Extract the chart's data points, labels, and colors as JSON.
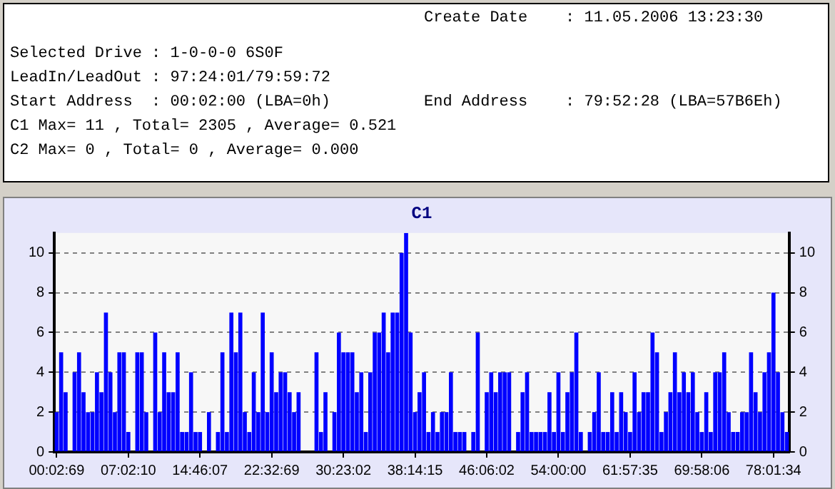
{
  "chart_data": {
    "type": "bar",
    "title": "C1",
    "annotations": [
      "Create Date    : 11.05.2006 13:23:30",
      "Selected Drive : 1-0-0-0 6S0F",
      "LeadIn/LeadOut : 97:24:01/79:59:72",
      "Start Address  : 00:02:00 (LBA=0h)",
      "End Address    : 79:52:28 (LBA=57B6Eh)",
      "C1 Max= 11 , Total= 2305 , Average= 0.521",
      "C2 Max= 0 , Total= 0 , Average= 0.000"
    ],
    "categories": [
      "00:02:69",
      null,
      null,
      null,
      null,
      null,
      null,
      null,
      null,
      null,
      null,
      null,
      null,
      null,
      null,
      null,
      "07:02:10",
      null,
      null,
      null,
      null,
      null,
      null,
      null,
      null,
      null,
      null,
      null,
      null,
      null,
      null,
      null,
      "14:46:07",
      null,
      null,
      null,
      null,
      null,
      null,
      null,
      null,
      null,
      null,
      null,
      null,
      null,
      null,
      null,
      "22:32:69",
      null,
      null,
      null,
      null,
      null,
      null,
      null,
      null,
      null,
      null,
      null,
      null,
      null,
      null,
      null,
      "30:23:02",
      null,
      null,
      null,
      null,
      null,
      null,
      null,
      null,
      null,
      null,
      null,
      null,
      null,
      null,
      null,
      "38:14:15",
      null,
      null,
      null,
      null,
      null,
      null,
      null,
      null,
      null,
      null,
      null,
      null,
      null,
      null,
      null,
      "46:06:02",
      null,
      null,
      null,
      null,
      null,
      null,
      null,
      null,
      null,
      null,
      null,
      null,
      null,
      null,
      null,
      "54:00:00",
      null,
      null,
      null,
      null,
      null,
      null,
      null,
      null,
      null,
      null,
      null,
      null,
      null,
      null,
      null,
      "61:57:35",
      null,
      null,
      null,
      null,
      null,
      null,
      null,
      null,
      null,
      null,
      null,
      null,
      null,
      null,
      null,
      "69:58:06",
      null,
      null,
      null,
      null,
      null,
      null,
      null,
      null,
      null,
      null,
      null,
      null,
      null,
      null,
      null,
      "78:01:34",
      null,
      null,
      null
    ],
    "series": [
      {
        "color": "#0000ff",
        "values": [
          2,
          5,
          3,
          0,
          4,
          5,
          3,
          2,
          2,
          4,
          3,
          7,
          4,
          2,
          5,
          5,
          1,
          0,
          5,
          5,
          2,
          0,
          6,
          2,
          5,
          3,
          3,
          5,
          1,
          1,
          4,
          1,
          1,
          0,
          2,
          0,
          1,
          5,
          1,
          7,
          5,
          7,
          2,
          1,
          4,
          2,
          7,
          2,
          5,
          3,
          4,
          4,
          3,
          2,
          3,
          0,
          0,
          0,
          5,
          1,
          3,
          0,
          2,
          6,
          5,
          5,
          5,
          3,
          4,
          1,
          4,
          6,
          6,
          7,
          5,
          7,
          7,
          10,
          11,
          6,
          2,
          3,
          4,
          1,
          2,
          1,
          2,
          2,
          4,
          1,
          1,
          1,
          0,
          1,
          6,
          0,
          3,
          4,
          3,
          4,
          4,
          4,
          0,
          1,
          3,
          4,
          1,
          1,
          1,
          1,
          3,
          1,
          4,
          1,
          3,
          4,
          6,
          1,
          0,
          1,
          2,
          4,
          1,
          1,
          3,
          1,
          3,
          2,
          1,
          4,
          2,
          3,
          3,
          6,
          5,
          1,
          2,
          3,
          5,
          3,
          4,
          3,
          4,
          2,
          1,
          3,
          1,
          4,
          4,
          5,
          2,
          1,
          1,
          2,
          2,
          5,
          3,
          2,
          4,
          5,
          8,
          4,
          2,
          1
        ]
      }
    ],
    "ylim": [
      0,
      11
    ],
    "yticks": [
      0,
      2,
      4,
      6,
      8,
      10
    ],
    "y2lim": [
      0,
      11
    ],
    "y2ticks": [
      0,
      2,
      4,
      6,
      8,
      10
    ],
    "grid": "y"
  }
}
